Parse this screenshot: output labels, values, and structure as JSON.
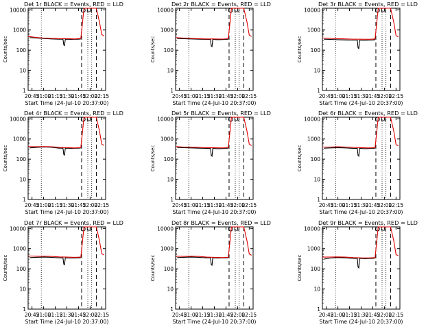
{
  "ui": {
    "panel_grid": "3 columns x 3 rows"
  },
  "chart_data": [
    {
      "type": "line",
      "title": "Det 1r BLACK = Events, RED = LLD",
      "xlabel": "Start Time (24-Jul-10 20:37:00)",
      "ylabel": "Counts/sec",
      "x_ticks": [
        "20:45",
        "21:00",
        "21:15",
        "21:30",
        "21:45",
        "22:00",
        "22:15"
      ],
      "y_ticks": [
        "1",
        "10",
        "100",
        "1000",
        "10000"
      ],
      "ylim": [
        1,
        12000
      ],
      "xlim_minutes": [
        40,
        140
      ],
      "yscale": "log",
      "event_lines_minutes": [
        109,
        128
      ],
      "dotted_lines_minutes": [
        57,
        117,
        122
      ],
      "series": [
        {
          "color": "#000000",
          "x": [
            42,
            50,
            60,
            70,
            80,
            85,
            86,
            87,
            88,
            95,
            100,
            105,
            108
          ],
          "y": [
            420,
            400,
            380,
            360,
            350,
            350,
            180,
            170,
            350,
            340,
            345,
            350,
            360
          ]
        },
        {
          "color": "#e00000",
          "x": [
            40,
            50,
            60,
            70,
            80,
            90,
            100,
            108,
            110,
            112,
            128,
            132,
            135,
            138
          ],
          "y": [
            480,
            430,
            400,
            380,
            370,
            370,
            360,
            380,
            2000,
            12000,
            12000,
            2500,
            600,
            500
          ]
        }
      ]
    },
    {
      "type": "line",
      "title": "Det 2r BLACK = Events, RED = LLD",
      "xlabel": "Start Time (24-Jul-10 20:37:00)",
      "ylabel": "Counts/sec",
      "x_ticks": [
        "20:45",
        "21:00",
        "21:15",
        "21:30",
        "21:45",
        "22:00",
        "22:15"
      ],
      "y_ticks": [
        "1",
        "10",
        "100",
        "1000",
        "10000"
      ],
      "ylim": [
        1,
        12000
      ],
      "xlim_minutes": [
        40,
        140
      ],
      "yscale": "log",
      "event_lines_minutes": [
        109,
        128
      ],
      "dotted_lines_minutes": [
        57,
        117,
        122
      ],
      "series": [
        {
          "color": "#000000",
          "x": [
            42,
            50,
            60,
            70,
            80,
            85,
            86,
            87,
            88,
            95,
            100,
            105,
            108
          ],
          "y": [
            380,
            370,
            360,
            350,
            340,
            340,
            160,
            150,
            340,
            330,
            335,
            340,
            350
          ]
        },
        {
          "color": "#e00000",
          "x": [
            40,
            50,
            60,
            70,
            80,
            90,
            100,
            108,
            110,
            112,
            128,
            132,
            135,
            138
          ],
          "y": [
            420,
            400,
            380,
            370,
            360,
            360,
            355,
            370,
            2000,
            12000,
            12000,
            2500,
            550,
            480
          ]
        }
      ]
    },
    {
      "type": "line",
      "title": "Det 3r BLACK = Events, RED = LLD",
      "xlabel": "Start Time (24-Jul-10 20:37:00)",
      "ylabel": "Counts/sec",
      "x_ticks": [
        "20:45",
        "21:00",
        "21:15",
        "21:30",
        "21:45",
        "22:00",
        "22:15"
      ],
      "y_ticks": [
        "1",
        "10",
        "100",
        "1000",
        "10000"
      ],
      "ylim": [
        1,
        12000
      ],
      "xlim_minutes": [
        40,
        140
      ],
      "yscale": "log",
      "event_lines_minutes": [
        109,
        128
      ],
      "dotted_lines_minutes": [
        57,
        117,
        122
      ],
      "series": [
        {
          "color": "#000000",
          "x": [
            42,
            50,
            60,
            70,
            80,
            85,
            86,
            87,
            88,
            95,
            100,
            105,
            108
          ],
          "y": [
            350,
            340,
            330,
            320,
            315,
            315,
            130,
            120,
            315,
            310,
            315,
            320,
            330
          ]
        },
        {
          "color": "#e00000",
          "x": [
            40,
            50,
            60,
            70,
            80,
            90,
            100,
            108,
            110,
            112,
            128,
            132,
            135,
            138
          ],
          "y": [
            400,
            380,
            370,
            360,
            350,
            350,
            345,
            360,
            2000,
            12000,
            12000,
            2500,
            520,
            460
          ]
        }
      ]
    },
    {
      "type": "line",
      "title": "Det 4r BLACK = Events, RED = LLD",
      "xlabel": "Start Time (24-Jul-10 20:37:00)",
      "ylabel": "Counts/sec",
      "x_ticks": [
        "20:45",
        "21:00",
        "21:15",
        "21:30",
        "21:45",
        "22:00",
        "22:15"
      ],
      "y_ticks": [
        "1",
        "10",
        "100",
        "1000",
        "10000"
      ],
      "ylim": [
        1,
        12000
      ],
      "xlim_minutes": [
        40,
        140
      ],
      "yscale": "log",
      "event_lines_minutes": [
        109,
        128
      ],
      "dotted_lines_minutes": [
        57,
        117,
        122
      ],
      "series": [
        {
          "color": "#000000",
          "x": [
            42,
            50,
            60,
            70,
            80,
            85,
            86,
            87,
            88,
            95,
            100,
            105,
            108
          ],
          "y": [
            360,
            380,
            400,
            390,
            350,
            350,
            170,
            160,
            350,
            340,
            345,
            350,
            360
          ]
        },
        {
          "color": "#e00000",
          "x": [
            40,
            50,
            60,
            70,
            80,
            90,
            100,
            108,
            110,
            112,
            128,
            132,
            135,
            138
          ],
          "y": [
            420,
            410,
            420,
            410,
            380,
            370,
            360,
            370,
            2000,
            12000,
            12000,
            2500,
            550,
            480
          ]
        }
      ]
    },
    {
      "type": "line",
      "title": "Det 5r BLACK = Events, RED = LLD",
      "xlabel": "Start Time (24-Jul-10 20:37:00)",
      "ylabel": "Counts/sec",
      "x_ticks": [
        "20:45",
        "21:00",
        "21:15",
        "21:30",
        "21:45",
        "22:00",
        "22:15"
      ],
      "y_ticks": [
        "1",
        "10",
        "100",
        "1000",
        "10000"
      ],
      "ylim": [
        1,
        12000
      ],
      "xlim_minutes": [
        40,
        140
      ],
      "yscale": "log",
      "event_lines_minutes": [
        109,
        128
      ],
      "dotted_lines_minutes": [
        57,
        117,
        122
      ],
      "series": [
        {
          "color": "#000000",
          "x": [
            42,
            50,
            60,
            70,
            80,
            85,
            86,
            87,
            88,
            95,
            100,
            105,
            108
          ],
          "y": [
            380,
            370,
            360,
            350,
            340,
            340,
            150,
            140,
            340,
            330,
            335,
            340,
            350
          ]
        },
        {
          "color": "#e00000",
          "x": [
            40,
            50,
            60,
            70,
            80,
            90,
            100,
            108,
            110,
            112,
            128,
            132,
            135,
            138
          ],
          "y": [
            420,
            400,
            390,
            380,
            370,
            365,
            360,
            370,
            2000,
            12000,
            12000,
            2500,
            550,
            470
          ]
        }
      ]
    },
    {
      "type": "line",
      "title": "Det 6r BLACK = Events, RED = LLD",
      "xlabel": "Start Time (24-Jul-10 20:37:00)",
      "ylabel": "Counts/sec",
      "x_ticks": [
        "20:45",
        "21:00",
        "21:15",
        "21:30",
        "21:45",
        "22:00",
        "22:15"
      ],
      "y_ticks": [
        "1",
        "10",
        "100",
        "1000",
        "10000"
      ],
      "ylim": [
        1,
        12000
      ],
      "xlim_minutes": [
        40,
        140
      ],
      "yscale": "log",
      "event_lines_minutes": [
        109,
        128
      ],
      "dotted_lines_minutes": [
        57,
        117,
        122
      ],
      "series": [
        {
          "color": "#000000",
          "x": [
            42,
            50,
            60,
            70,
            80,
            85,
            86,
            87,
            88,
            95,
            100,
            105,
            108
          ],
          "y": [
            350,
            360,
            370,
            360,
            340,
            340,
            150,
            140,
            340,
            330,
            335,
            340,
            350
          ]
        },
        {
          "color": "#e00000",
          "x": [
            40,
            50,
            60,
            70,
            80,
            90,
            100,
            108,
            110,
            112,
            128,
            132,
            135,
            138
          ],
          "y": [
            400,
            400,
            410,
            400,
            380,
            370,
            360,
            370,
            2000,
            12000,
            12000,
            2500,
            520,
            460
          ]
        }
      ]
    },
    {
      "type": "line",
      "title": "Det 7r BLACK = Events, RED = LLD",
      "xlabel": "Start Time (24-Jul-10 20:37:00)",
      "ylabel": "Counts/sec",
      "x_ticks": [
        "20:45",
        "21:00",
        "21:15",
        "21:30",
        "21:45",
        "22:00",
        "22:15"
      ],
      "y_ticks": [
        "1",
        "10",
        "100",
        "1000",
        "10000"
      ],
      "ylim": [
        1,
        12000
      ],
      "xlim_minutes": [
        40,
        140
      ],
      "yscale": "log",
      "event_lines_minutes": [
        109,
        128
      ],
      "dotted_lines_minutes": [
        57,
        117,
        122
      ],
      "series": [
        {
          "color": "#000000",
          "x": [
            42,
            50,
            60,
            70,
            80,
            85,
            86,
            87,
            88,
            95,
            100,
            105,
            108
          ],
          "y": [
            360,
            370,
            380,
            370,
            350,
            350,
            170,
            160,
            350,
            340,
            345,
            350,
            360
          ]
        },
        {
          "color": "#e00000",
          "x": [
            40,
            50,
            60,
            70,
            80,
            90,
            100,
            108,
            110,
            112,
            128,
            132,
            135,
            138
          ],
          "y": [
            430,
            420,
            420,
            410,
            390,
            380,
            370,
            380,
            2000,
            12000,
            12000,
            2500,
            560,
            490
          ]
        }
      ]
    },
    {
      "type": "line",
      "title": "Det 8r BLACK = Events, RED = LLD",
      "xlabel": "Start Time (24-Jul-10 20:37:00)",
      "ylabel": "Counts/sec",
      "x_ticks": [
        "20:45",
        "21:00",
        "21:15",
        "21:30",
        "21:45",
        "22:00",
        "22:15"
      ],
      "y_ticks": [
        "1",
        "10",
        "100",
        "1000",
        "10000"
      ],
      "ylim": [
        1,
        12000
      ],
      "xlim_minutes": [
        40,
        140
      ],
      "yscale": "log",
      "event_lines_minutes": [
        109,
        128
      ],
      "dotted_lines_minutes": [
        57,
        117,
        122
      ],
      "series": [
        {
          "color": "#000000",
          "x": [
            42,
            50,
            60,
            70,
            80,
            85,
            86,
            87,
            88,
            95,
            100,
            105,
            108
          ],
          "y": [
            360,
            370,
            380,
            370,
            350,
            350,
            160,
            150,
            350,
            340,
            345,
            350,
            360
          ]
        },
        {
          "color": "#e00000",
          "x": [
            40,
            50,
            60,
            70,
            80,
            90,
            100,
            108,
            110,
            112,
            128,
            132,
            135,
            138
          ],
          "y": [
            420,
            410,
            420,
            410,
            380,
            370,
            360,
            370,
            2000,
            12000,
            12000,
            2500,
            540,
            470
          ]
        }
      ]
    },
    {
      "type": "line",
      "title": "Det 9r BLACK = Events, RED = LLD",
      "xlabel": "Start Time (24-Jul-10 20:37:00)",
      "ylabel": "Counts/sec",
      "x_ticks": [
        "20:45",
        "21:00",
        "21:15",
        "21:30",
        "21:45",
        "22:00",
        "22:15"
      ],
      "y_ticks": [
        "1",
        "10",
        "100",
        "1000",
        "10000"
      ],
      "ylim": [
        1,
        12000
      ],
      "xlim_minutes": [
        40,
        140
      ],
      "yscale": "log",
      "event_lines_minutes": [
        109,
        128
      ],
      "dotted_lines_minutes": [
        57,
        117,
        122
      ],
      "series": [
        {
          "color": "#000000",
          "x": [
            42,
            50,
            60,
            70,
            80,
            85,
            86,
            87,
            88,
            95,
            100,
            105,
            108
          ],
          "y": [
            300,
            340,
            360,
            350,
            330,
            330,
            120,
            110,
            330,
            320,
            325,
            330,
            340
          ]
        },
        {
          "color": "#e00000",
          "x": [
            40,
            50,
            60,
            70,
            80,
            90,
            100,
            108,
            110,
            112,
            128,
            132,
            135,
            138
          ],
          "y": [
            380,
            380,
            390,
            380,
            360,
            350,
            345,
            360,
            2000,
            12000,
            12000,
            2500,
            500,
            450
          ]
        }
      ]
    }
  ]
}
